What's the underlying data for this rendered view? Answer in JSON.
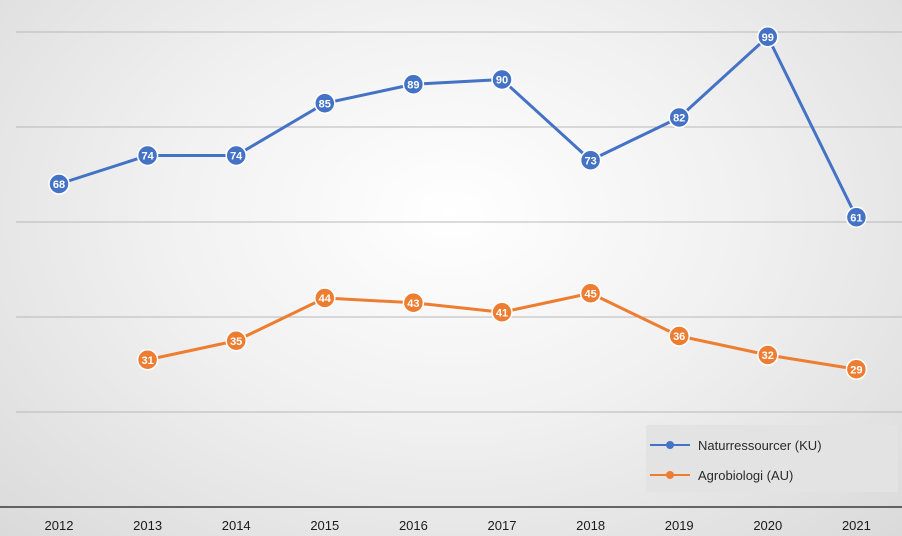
{
  "chart_data": {
    "type": "line",
    "categories": [
      "2012",
      "2013",
      "2014",
      "2015",
      "2016",
      "2017",
      "2018",
      "2019",
      "2020",
      "2021"
    ],
    "series": [
      {
        "name": "Naturressourcer (KU)",
        "color": "#4472c4",
        "values": [
          68,
          74,
          74,
          85,
          89,
          90,
          73,
          82,
          99,
          61
        ]
      },
      {
        "name": "Agrobiologi (AU)",
        "color": "#ed7d31",
        "values": [
          null,
          31,
          35,
          44,
          43,
          41,
          45,
          36,
          32,
          29
        ]
      }
    ],
    "ylim": [
      0,
      100
    ],
    "y_gridlines": [
      20,
      40,
      60,
      80,
      100
    ],
    "y_tick_labels_visible": false,
    "grid": true,
    "legend_position": "bottom-right",
    "data_labels": true
  }
}
